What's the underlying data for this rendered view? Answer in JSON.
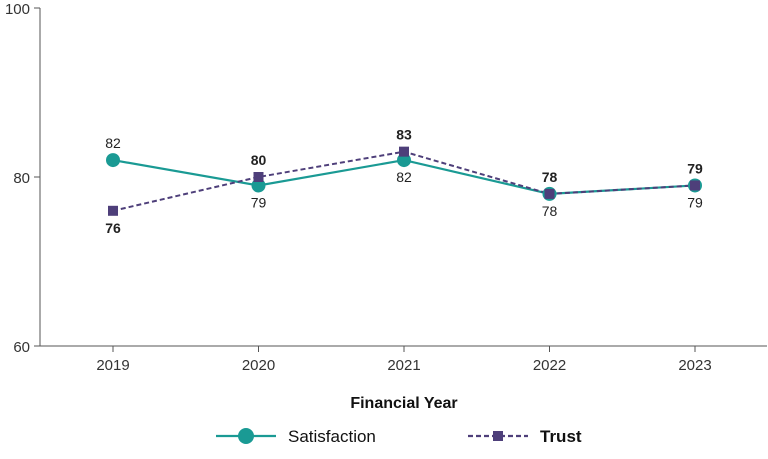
{
  "chart_data": {
    "type": "line",
    "title": "",
    "xlabel": "Financial Year",
    "ylabel": "",
    "categories": [
      "2019",
      "2020",
      "2021",
      "2022",
      "2023"
    ],
    "ylim": [
      60,
      100
    ],
    "yticks": [
      60,
      80,
      100
    ],
    "grid": false,
    "legend_position": "bottom",
    "series": [
      {
        "name": "Satisfaction",
        "values": [
          82,
          79,
          82,
          78,
          79
        ],
        "color": "#1a9a94",
        "line_style": "solid",
        "marker": "circle",
        "label_weight": "normal"
      },
      {
        "name": "Trust",
        "values": [
          76,
          80,
          83,
          78,
          79
        ],
        "color": "#4e3f7a",
        "line_style": "dashed",
        "marker": "square",
        "label_weight": "bold"
      }
    ]
  }
}
